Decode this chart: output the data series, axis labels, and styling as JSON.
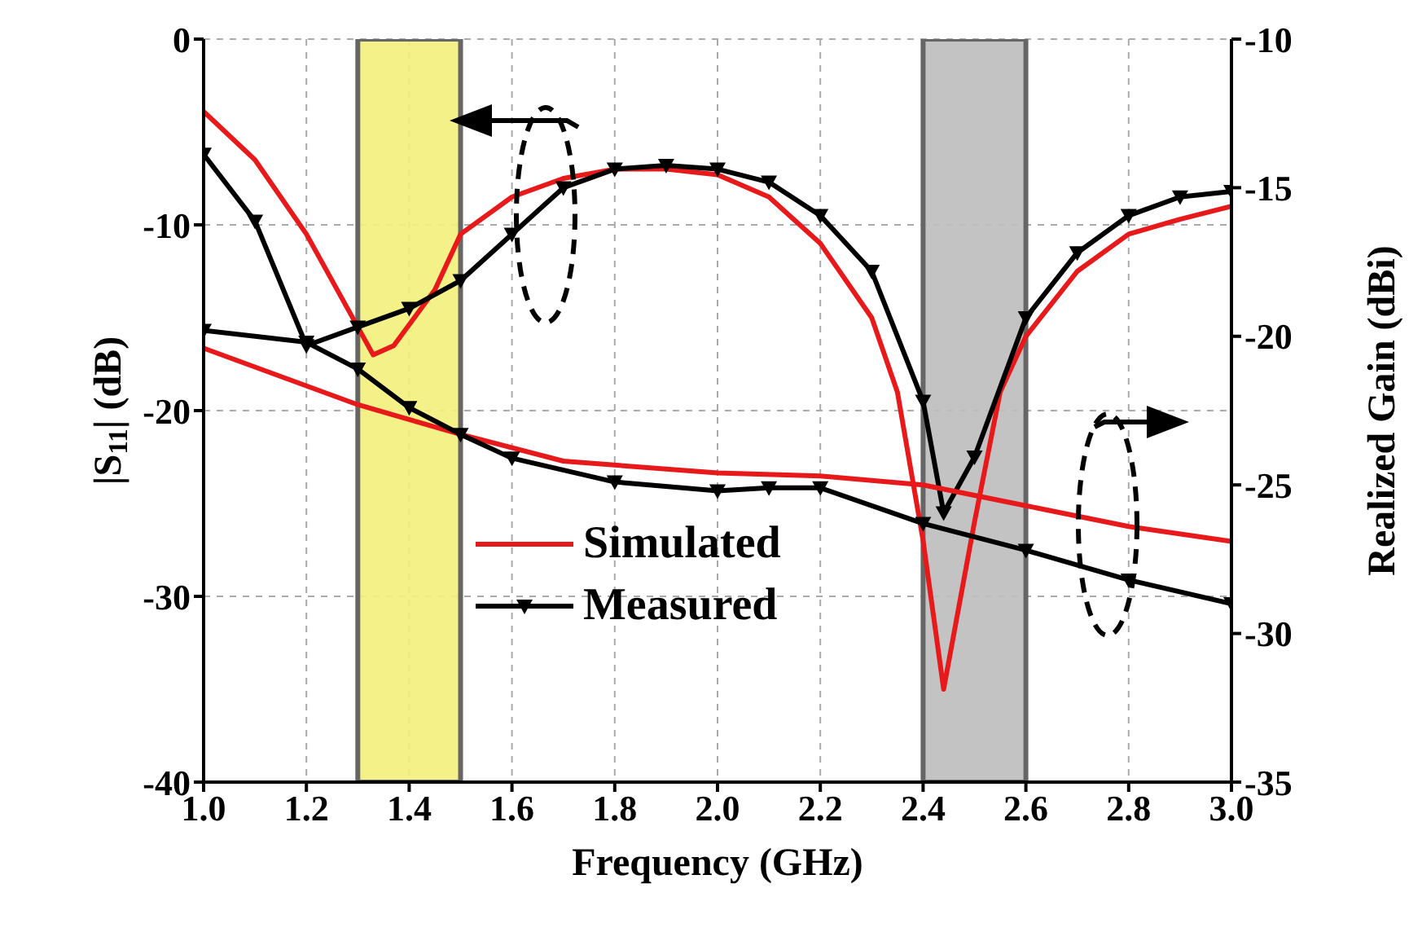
{
  "chart_data": {
    "type": "line",
    "xlabel": "Frequency (GHz)",
    "ylabel": "|S$_{11}$| (dB)",
    "y2label": "Realized Gain (dBi)",
    "xlim": [
      1.0,
      3.0
    ],
    "xticks": [
      {
        "value": 1.0,
        "label": "1.0"
      },
      {
        "value": 1.2,
        "label": "1.2"
      },
      {
        "value": 1.4,
        "label": "1.4"
      },
      {
        "value": 1.6,
        "label": "1.6"
      },
      {
        "value": 1.8,
        "label": "1.8"
      },
      {
        "value": 2.0,
        "label": "2.0"
      },
      {
        "value": 2.2,
        "label": "2.2"
      },
      {
        "value": 2.4,
        "label": "2.4"
      },
      {
        "value": 2.6,
        "label": "2.6"
      },
      {
        "value": 2.8,
        "label": "2.8"
      },
      {
        "value": 3.0,
        "label": "3.0"
      }
    ],
    "ylim": [
      -40,
      0
    ],
    "yticks": [
      -40,
      -30,
      -20,
      -10,
      0
    ],
    "y2lim": [
      -35,
      -10
    ],
    "y2ticks": [
      -35,
      -30,
      -25,
      -20,
      -15,
      -10
    ],
    "grid": true,
    "legend": "bottom",
    "line_style": "solid",
    "bands": [
      {
        "axis": "x",
        "from": 1.3,
        "to": 1.5,
        "color": "#f2f07a"
      },
      {
        "axis": "x",
        "from": 2.4,
        "to": 2.6,
        "color": "#bdbdbd"
      }
    ],
    "series": [
      {
        "name": "Simulated",
        "color": "#e8191a",
        "marker": "none",
        "x": [
          1.0,
          1.1,
          1.2,
          1.3,
          1.33,
          1.37,
          1.45,
          1.5,
          1.6,
          1.7,
          1.8,
          1.9,
          2.0,
          2.1,
          2.2,
          2.3,
          2.35,
          2.4,
          2.44,
          2.5,
          2.55,
          2.6,
          2.7,
          2.8,
          2.9,
          3.0
        ],
        "values": [
          -3.9,
          -6.5,
          -10.5,
          -15.5,
          -17,
          -16.5,
          -13.5,
          -10.5,
          -8.5,
          -7.5,
          -7,
          -7,
          -7.3,
          -8.5,
          -11,
          -15,
          -19,
          -27,
          -35,
          -26,
          -19,
          -16,
          -12.5,
          -10.5,
          -9.7,
          -9
        ]
      },
      {
        "name": "Measured",
        "color": "#000000",
        "marker": "triangle",
        "x": [
          1.0,
          1.1,
          1.2,
          1.3,
          1.4,
          1.5,
          1.6,
          1.7,
          1.8,
          1.9,
          2.0,
          2.1,
          2.2,
          2.3,
          2.4,
          2.44,
          2.5,
          2.6,
          2.7,
          2.8,
          2.9,
          3.0
        ],
        "values": [
          -6.2,
          -9.8,
          -16.5,
          -15.5,
          -14.5,
          -13,
          -10.5,
          -8,
          -7,
          -6.8,
          -7,
          -7.7,
          -9.5,
          -12.5,
          -19.5,
          -25.5,
          -22.5,
          -15,
          -11.5,
          -9.5,
          -8.5,
          -8.2
        ]
      },
      {
        "color": "#e8191a",
        "marker": "none",
        "axis": "y2",
        "x": [
          1.0,
          1.3,
          1.5,
          1.7,
          2.0,
          2.2,
          2.4,
          2.6,
          2.8,
          3.0
        ],
        "values": [
          -20.4,
          -22.3,
          -23.3,
          -24.2,
          -24.6,
          -24.7,
          -25.0,
          -25.7,
          -26.4,
          -26.9
        ]
      },
      {
        "color": "#000000",
        "marker": "triangle",
        "axis": "y2",
        "x": [
          1.0,
          1.2,
          1.3,
          1.4,
          1.5,
          1.6,
          1.8,
          2.0,
          2.1,
          2.2,
          2.4,
          2.6,
          2.8,
          3.0
        ],
        "values": [
          -19.8,
          -20.2,
          -21.1,
          -22.4,
          -23.3,
          -24.1,
          -24.9,
          -25.2,
          -25.1,
          -25.1,
          -26.3,
          -27.2,
          -28.2,
          -29.0
        ]
      }
    ]
  }
}
